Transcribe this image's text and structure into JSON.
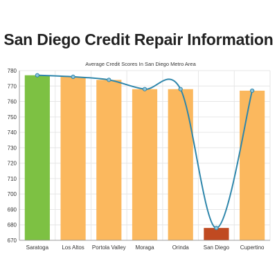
{
  "page": {
    "title": "San Diego Credit Repair Information"
  },
  "colors": {
    "bar_default": "#fbb85e",
    "bar_highest": "#7dc143",
    "bar_lowest": "#c04a21",
    "line": "#2e86ab",
    "grid": "#e6e6e6",
    "axis": "#999999",
    "text": "#333333"
  },
  "chart_data": {
    "type": "bar",
    "title": "Average Credit Scores In San Diego Metro Area",
    "xlabel": "",
    "ylabel": "",
    "categories": [
      "Saratoga",
      "Los Altos",
      "Portola Valley",
      "Moraga",
      "Orinda",
      "San Diego",
      "Cupertino"
    ],
    "series": [
      {
        "values": [
          777,
          776,
          774,
          768,
          768,
          678,
          767
        ]
      }
    ],
    "overlay": "smooth line through bar values",
    "bar_color_keys": [
      "bar_highest",
      "bar_default",
      "bar_default",
      "bar_default",
      "bar_default",
      "bar_lowest",
      "bar_default"
    ],
    "ylim": [
      670,
      780
    ],
    "yticks": [
      670,
      680,
      690,
      700,
      710,
      720,
      730,
      740,
      750,
      760,
      770,
      780
    ],
    "grid": true,
    "legend": "none"
  }
}
